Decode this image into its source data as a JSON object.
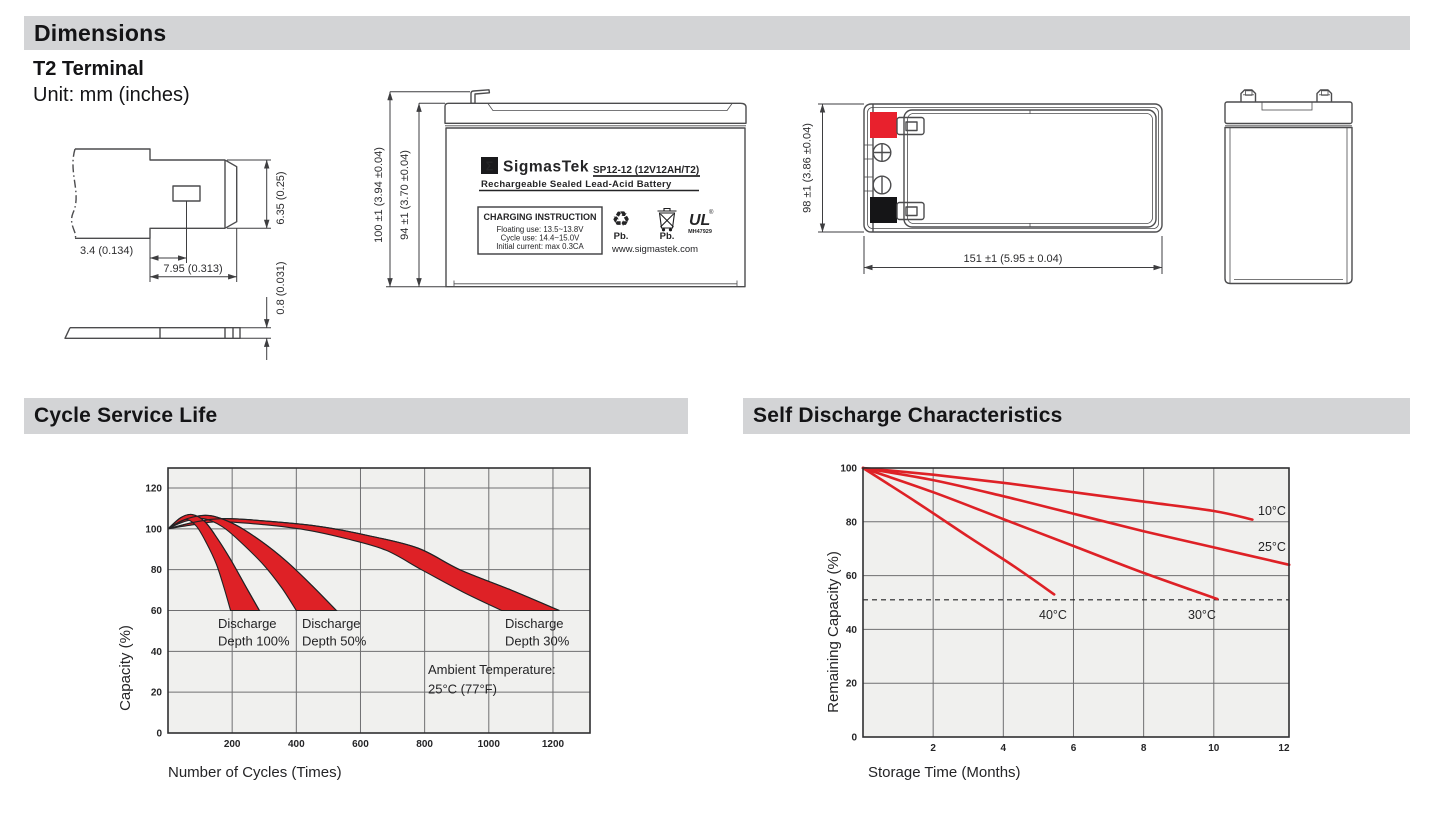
{
  "header": {
    "title": "Dimensions"
  },
  "dimensions": {
    "terminal_type": "T2 Terminal",
    "unit_note": "Unit: mm (inches)",
    "terminal_drawing": {
      "height": "6.35 (0.25)",
      "offset": "3.4 (0.134)",
      "width": "7.95 (0.313)",
      "thickness": "0.8 (0.031)"
    },
    "front_view": {
      "overall_height": "100 ±1 (3.94 ±0.04)",
      "container_height": "94 ±1 (3.70 ±0.04)",
      "label": {
        "logo_glyph": "Σ",
        "brand": "SigmasTek",
        "model": "SP12-12 (12V12AH/T2)",
        "battery_type": "Rechargeable Sealed Lead-Acid Battery",
        "charging_title": "CHARGING INSTRUCTION",
        "charging_line1": "Floating use: 13.5~13.8V",
        "charging_line2": "Cycle use: 14.4~15.0V",
        "charging_line3": "Initial current: max 0.3CA",
        "recycle_glyph": "♻",
        "recycle_pb": "Pb.",
        "bin_pb": "Pb.",
        "ul_text": "UL",
        "ul_reg": "®",
        "ul_code": "MH47929",
        "website": "www.sigmastek.com"
      }
    },
    "top_view": {
      "height": "98 ±1 (3.86 ±0.04)",
      "length": "151 ±1 (5.95 ± 0.04)"
    }
  },
  "cycle_section": {
    "title": "Cycle Service Life"
  },
  "discharge_section": {
    "title": "Self Discharge Characteristics"
  },
  "colors": {
    "bar_gray": "#d3d4d6",
    "chart_bg": "#f0f0ee",
    "grid": "#6f6f71",
    "band_red": "#de2126",
    "terminal_red": "#e8212d",
    "ink": "#1d1d1f"
  },
  "chart_data": [
    {
      "type": "area",
      "title": "Cycle Service Life",
      "xlabel": "Number of Cycles (Times)",
      "ylabel": "Capacity (%)",
      "xlim": [
        0,
        1310
      ],
      "ylim": [
        0,
        130
      ],
      "xticks": [
        200,
        400,
        600,
        800,
        1000,
        1200
      ],
      "yticks": [
        0,
        20,
        40,
        60,
        80,
        100,
        120
      ],
      "grid": true,
      "legend_position": "none",
      "bands": [
        {
          "name": "Discharge Depth 100%",
          "upper": [
            [
              0,
              100
            ],
            [
              40,
              105.5
            ],
            [
              75,
              107
            ],
            [
              115,
              103.5
            ],
            [
              155,
              95
            ],
            [
              195,
              85
            ],
            [
              245,
              71
            ],
            [
              285,
              60
            ]
          ],
          "lower": [
            [
              0,
              100
            ],
            [
              30,
              103
            ],
            [
              60,
              104.5
            ],
            [
              90,
              101
            ],
            [
              120,
              93
            ],
            [
              150,
              83
            ],
            [
              175,
              71
            ],
            [
              195,
              60
            ]
          ]
        },
        {
          "name": "Discharge Depth 50%",
          "upper": [
            [
              0,
              100
            ],
            [
              60,
              105
            ],
            [
              130,
              106.5
            ],
            [
              210,
              102
            ],
            [
              290,
              94
            ],
            [
              370,
              84
            ],
            [
              450,
              72
            ],
            [
              525,
              60
            ]
          ],
          "lower": [
            [
              0,
              100
            ],
            [
              50,
              103.5
            ],
            [
              110,
              105
            ],
            [
              170,
              101
            ],
            [
              230,
              93
            ],
            [
              300,
              82
            ],
            [
              355,
              71
            ],
            [
              400,
              60
            ]
          ]
        },
        {
          "name": "Discharge Depth 30%",
          "upper": [
            [
              0,
              100
            ],
            [
              90,
              103.5
            ],
            [
              180,
              105
            ],
            [
              330,
              103.5
            ],
            [
              480,
              101
            ],
            [
              630,
              96.5
            ],
            [
              780,
              90.5
            ],
            [
              910,
              80
            ],
            [
              1070,
              70
            ],
            [
              1220,
              60
            ]
          ],
          "lower": [
            [
              0,
              100
            ],
            [
              80,
              102
            ],
            [
              160,
              103.5
            ],
            [
              300,
              102
            ],
            [
              430,
              99.5
            ],
            [
              560,
              95
            ],
            [
              680,
              89.5
            ],
            [
              790,
              80
            ],
            [
              920,
              69
            ],
            [
              1040,
              60
            ]
          ]
        }
      ],
      "annotations": [
        {
          "lines": [
            "Discharge",
            "Depth 100%"
          ]
        },
        {
          "lines": [
            "Discharge",
            "Depth 50%"
          ]
        },
        {
          "lines": [
            "Discharge",
            "Depth 30%"
          ]
        },
        {
          "lines": [
            "Ambient Temperature:",
            "25°C (77°F)"
          ]
        }
      ]
    },
    {
      "type": "line",
      "title": "Self Discharge Characteristics",
      "xlabel": "Storage Time (Months)",
      "ylabel": "Remaining Capacity (%)",
      "xlim": [
        0,
        12.15
      ],
      "ylim": [
        0,
        100
      ],
      "xticks": [
        2,
        4,
        6,
        8,
        10,
        12
      ],
      "yticks": [
        0,
        20,
        40,
        60,
        80,
        100
      ],
      "grid": true,
      "dashed_line_y": 51,
      "series": [
        {
          "name": "10°C",
          "points": [
            [
              0,
              100
            ],
            [
              2,
              97.5
            ],
            [
              4,
              94.5
            ],
            [
              6,
              91
            ],
            [
              8,
              87.5
            ],
            [
              10,
              84
            ],
            [
              11.1,
              80.8
            ]
          ]
        },
        {
          "name": "25°C",
          "points": [
            [
              0,
              100
            ],
            [
              2,
              95.5
            ],
            [
              4,
              89.5
            ],
            [
              6,
              83
            ],
            [
              8,
              76.5
            ],
            [
              10,
              70.5
            ],
            [
              12.15,
              64
            ]
          ]
        },
        {
          "name": "30°C",
          "points": [
            [
              0,
              100
            ],
            [
              2,
              91
            ],
            [
              4,
              81
            ],
            [
              6,
              71
            ],
            [
              8,
              61
            ],
            [
              10.1,
              51.3
            ]
          ]
        },
        {
          "name": "40°C",
          "points": [
            [
              0,
              100
            ],
            [
              1.5,
              87.5
            ],
            [
              3,
              74.5
            ],
            [
              4.3,
              63.5
            ],
            [
              5.45,
              53
            ]
          ]
        }
      ]
    }
  ]
}
